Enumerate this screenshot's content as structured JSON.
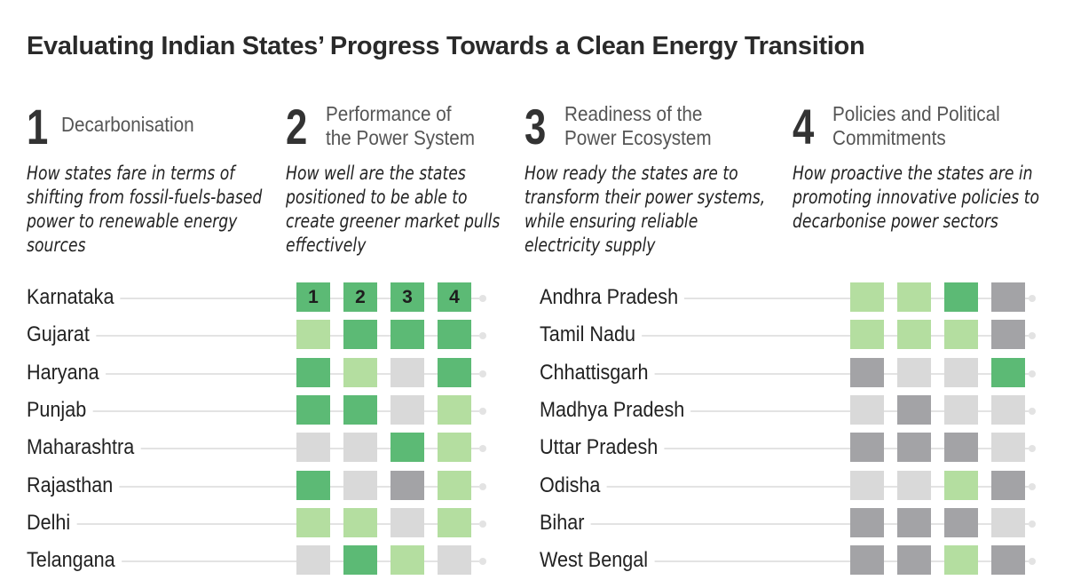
{
  "title": "Evaluating Indian States’ Progress Towards a Clean Energy Transition",
  "pillars": [
    {
      "number": "1",
      "label": [
        "Decarbonisation"
      ],
      "description": "How states fare in terms of shifting from fossil-fuels-based power to renewable energy sources"
    },
    {
      "number": "2",
      "label": [
        "Performance of",
        "the Power System"
      ],
      "description": "How well are the states positioned to be able to create greener market pulls effectively"
    },
    {
      "number": "3",
      "label": [
        "Readiness of the",
        "Power Ecosystem"
      ],
      "description": "How ready the states are to transform their power systems, while ensuring reliable electricity supply"
    },
    {
      "number": "4",
      "label": [
        "Policies and Political",
        "Commitments"
      ],
      "description": "How proactive the states are in promoting innovative policies to decarbonise power sectors"
    }
  ],
  "colors": {
    "dark_green": "#5cba75",
    "light_green": "#b4deA0",
    "light_gray": "#d9d9d9",
    "dark_gray": "#a3a3a6"
  },
  "chart_data": {
    "type": "heatmap",
    "columns": [
      "1",
      "2",
      "3",
      "4"
    ],
    "levels": [
      "dark_green",
      "light_green",
      "light_gray",
      "dark_gray"
    ],
    "groups": [
      {
        "states": [
          {
            "name": "Karnataka",
            "values": [
              "dark_green",
              "dark_green",
              "dark_green",
              "dark_green"
            ]
          },
          {
            "name": "Gujarat",
            "values": [
              "light_green",
              "dark_green",
              "dark_green",
              "dark_green"
            ]
          },
          {
            "name": "Haryana",
            "values": [
              "dark_green",
              "light_green",
              "light_gray",
              "dark_green"
            ]
          },
          {
            "name": "Punjab",
            "values": [
              "dark_green",
              "dark_green",
              "light_gray",
              "light_green"
            ]
          },
          {
            "name": "Maharashtra",
            "values": [
              "light_gray",
              "light_gray",
              "dark_green",
              "light_green"
            ]
          },
          {
            "name": "Rajasthan",
            "values": [
              "dark_green",
              "light_gray",
              "dark_gray",
              "light_green"
            ]
          },
          {
            "name": "Delhi",
            "values": [
              "light_green",
              "light_green",
              "light_gray",
              "light_green"
            ]
          },
          {
            "name": "Telangana",
            "values": [
              "light_gray",
              "dark_green",
              "light_green",
              "light_gray"
            ]
          }
        ]
      },
      {
        "states": [
          {
            "name": "Andhra Pradesh",
            "values": [
              "light_green",
              "light_green",
              "dark_green",
              "dark_gray"
            ]
          },
          {
            "name": "Tamil Nadu",
            "values": [
              "light_green",
              "light_green",
              "light_green",
              "dark_gray"
            ]
          },
          {
            "name": "Chhattisgarh",
            "values": [
              "dark_gray",
              "light_gray",
              "light_gray",
              "dark_green"
            ]
          },
          {
            "name": "Madhya Pradesh",
            "values": [
              "light_gray",
              "dark_gray",
              "light_gray",
              "light_gray"
            ]
          },
          {
            "name": "Uttar Pradesh",
            "values": [
              "dark_gray",
              "dark_gray",
              "dark_gray",
              "light_gray"
            ]
          },
          {
            "name": "Odisha",
            "values": [
              "light_gray",
              "light_gray",
              "light_green",
              "dark_gray"
            ]
          },
          {
            "name": "Bihar",
            "values": [
              "dark_gray",
              "dark_gray",
              "dark_gray",
              "light_gray"
            ]
          },
          {
            "name": "West Bengal",
            "values": [
              "dark_gray",
              "dark_gray",
              "light_green",
              "dark_gray"
            ]
          }
        ]
      }
    ]
  }
}
